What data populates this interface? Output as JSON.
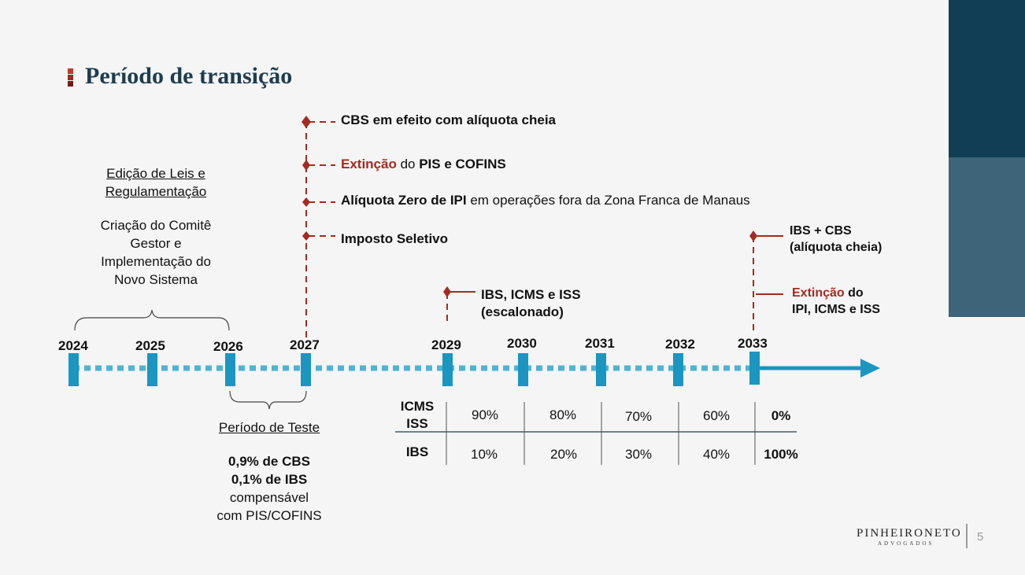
{
  "title": "Período de transição",
  "colors": {
    "accent_red": "#a52a1f",
    "timeline_blue": "#1a96c0",
    "navy": "#113e54",
    "steel": "#3d6478"
  },
  "years": [
    "2024",
    "2025",
    "2026",
    "2027",
    "2029",
    "2030",
    "2031",
    "2032",
    "2033"
  ],
  "left_note": {
    "heading_line1": "Edição de Leis e",
    "heading_line2": "Regulamentação",
    "body_line1": "Criação do Comitê",
    "body_line2": "Gestor e",
    "body_line3": "Implementação do",
    "body_line4": "Novo Sistema"
  },
  "test_period": {
    "heading": "Período de Teste",
    "line1": "0,9% de CBS",
    "line2": "0,1% de IBS",
    "line3": "compensável",
    "line4": "com PIS/COFINS"
  },
  "events_2027": {
    "e1": "CBS em efeito com alíquota cheia",
    "e2_red": "Extinção",
    "e2_mid": " do ",
    "e2_bold": "PIS e COFINS",
    "e3_bold": "Alíquota Zero de IPI",
    "e3_rest": " em operações fora da Zona Franca de Manaus",
    "e4": "Imposto Seletivo"
  },
  "events_2029": {
    "line1": "IBS, ICMS e ISS",
    "line2": "(escalonado)"
  },
  "events_2033": {
    "a_line1": "IBS + CBS",
    "a_line2": "(alíquota cheia)",
    "b_red": "Extinção",
    "b_rest": " do",
    "b_line2": "IPI, ICMS e ISS"
  },
  "table": {
    "row1_label_line1": "ICMS",
    "row1_label_line2": "ISS",
    "row2_label": "IBS",
    "row1": [
      "90%",
      "80%",
      "70%",
      "60%",
      "0%"
    ],
    "row2": [
      "10%",
      "20%",
      "30%",
      "40%",
      "100%"
    ]
  },
  "footer": {
    "logo_main": "PINHEIRONETO",
    "logo_sub": "ADVOGADOS",
    "page": "5"
  }
}
